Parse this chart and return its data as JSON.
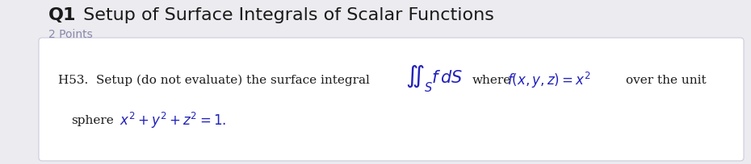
{
  "title_bold": "Q1",
  "title_normal": " Setup of Surface Integrals of Scalar Functions",
  "subtitle": "2 Points",
  "problem_number": "H53.",
  "line1_text_before": "  Setup (do not evaluate) the surface integral",
  "line1_math": "\\iint_S f \\, dS",
  "line1_text_middle": " where ",
  "line1_math2": "f(x, y, z) = x^2",
  "line1_text_after": " over the unit",
  "line2_text_before": "sphere ",
  "line2_math": "x^2 + y^2 + z^2 = 1.",
  "bg_color": "#ebebf0",
  "box_bg": "#ffffff",
  "title_color": "#1a1a1a",
  "subtitle_color": "#8888aa",
  "text_color": "#1a1a1a",
  "math_color": "#2222bb",
  "box_border": "#ccccdd",
  "title_fontsize": 16,
  "subtitle_fontsize": 10,
  "body_fontsize": 11,
  "math_fontsize": 12
}
